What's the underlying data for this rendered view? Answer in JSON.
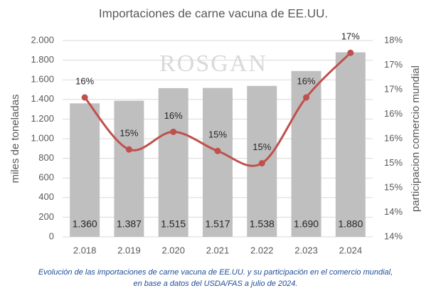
{
  "chart_data": {
    "type": "bar",
    "title": "Importaciones de carne vacuna de EE.UU.",
    "watermark": "ROSGAN",
    "ylabel": "miles de toneladas",
    "y2label": "participacion  comercio mundial",
    "caption": [
      "Evolución de las importaciones de carne vacuna de EE.UU.  y su participación en el comercio mundial,",
      "en base a datos del USDA/FAS a julio de 2024."
    ],
    "categories": [
      "2.018",
      "2.019",
      "2.020",
      "2.021",
      "2.022",
      "2.023",
      "2.024"
    ],
    "series": [
      {
        "type": "bar",
        "color": "#bfbfbf",
        "values": [
          1360,
          1387,
          1515,
          1517,
          1538,
          1690,
          1880
        ],
        "value_labels": [
          "1.360",
          "1.387",
          "1.515",
          "1.517",
          "1.538",
          "1.690",
          "1.880"
        ]
      },
      {
        "type": "line",
        "axis": "y2",
        "color": "#c0504d",
        "values": [
          16.34,
          15.28,
          15.64,
          15.25,
          15.0,
          16.34,
          17.25
        ],
        "value_labels": [
          "16%",
          "15%",
          "16%",
          "15%",
          "15%",
          "16%",
          "17%"
        ]
      }
    ],
    "ylim": [
      0,
      2000
    ],
    "yticks": [
      0,
      200,
      400,
      600,
      800,
      {
        "value": 1000,
        "label": "1.000"
      },
      {
        "value": 1200,
        "label": "1.200"
      },
      {
        "value": 1400,
        "label": "1.400"
      },
      {
        "value": 1600,
        "label": "1.600"
      },
      {
        "value": 1800,
        "label": "1.800"
      },
      {
        "value": 2000,
        "label": "2.000"
      }
    ],
    "y2lim": [
      13.5,
      17.5
    ],
    "y2ticks": [
      {
        "value": 13.5,
        "label": "14%"
      },
      {
        "value": 14,
        "label": "14%"
      },
      {
        "value": 14.5,
        "label": "15%"
      },
      {
        "value": 15,
        "label": "15%"
      },
      {
        "value": 15.5,
        "label": "16%"
      },
      {
        "value": 16,
        "label": "16%"
      },
      {
        "value": 16.5,
        "label": "17%"
      },
      {
        "value": 17,
        "label": "17%"
      },
      {
        "value": 17.5,
        "label": "18%"
      }
    ],
    "grid": true
  }
}
